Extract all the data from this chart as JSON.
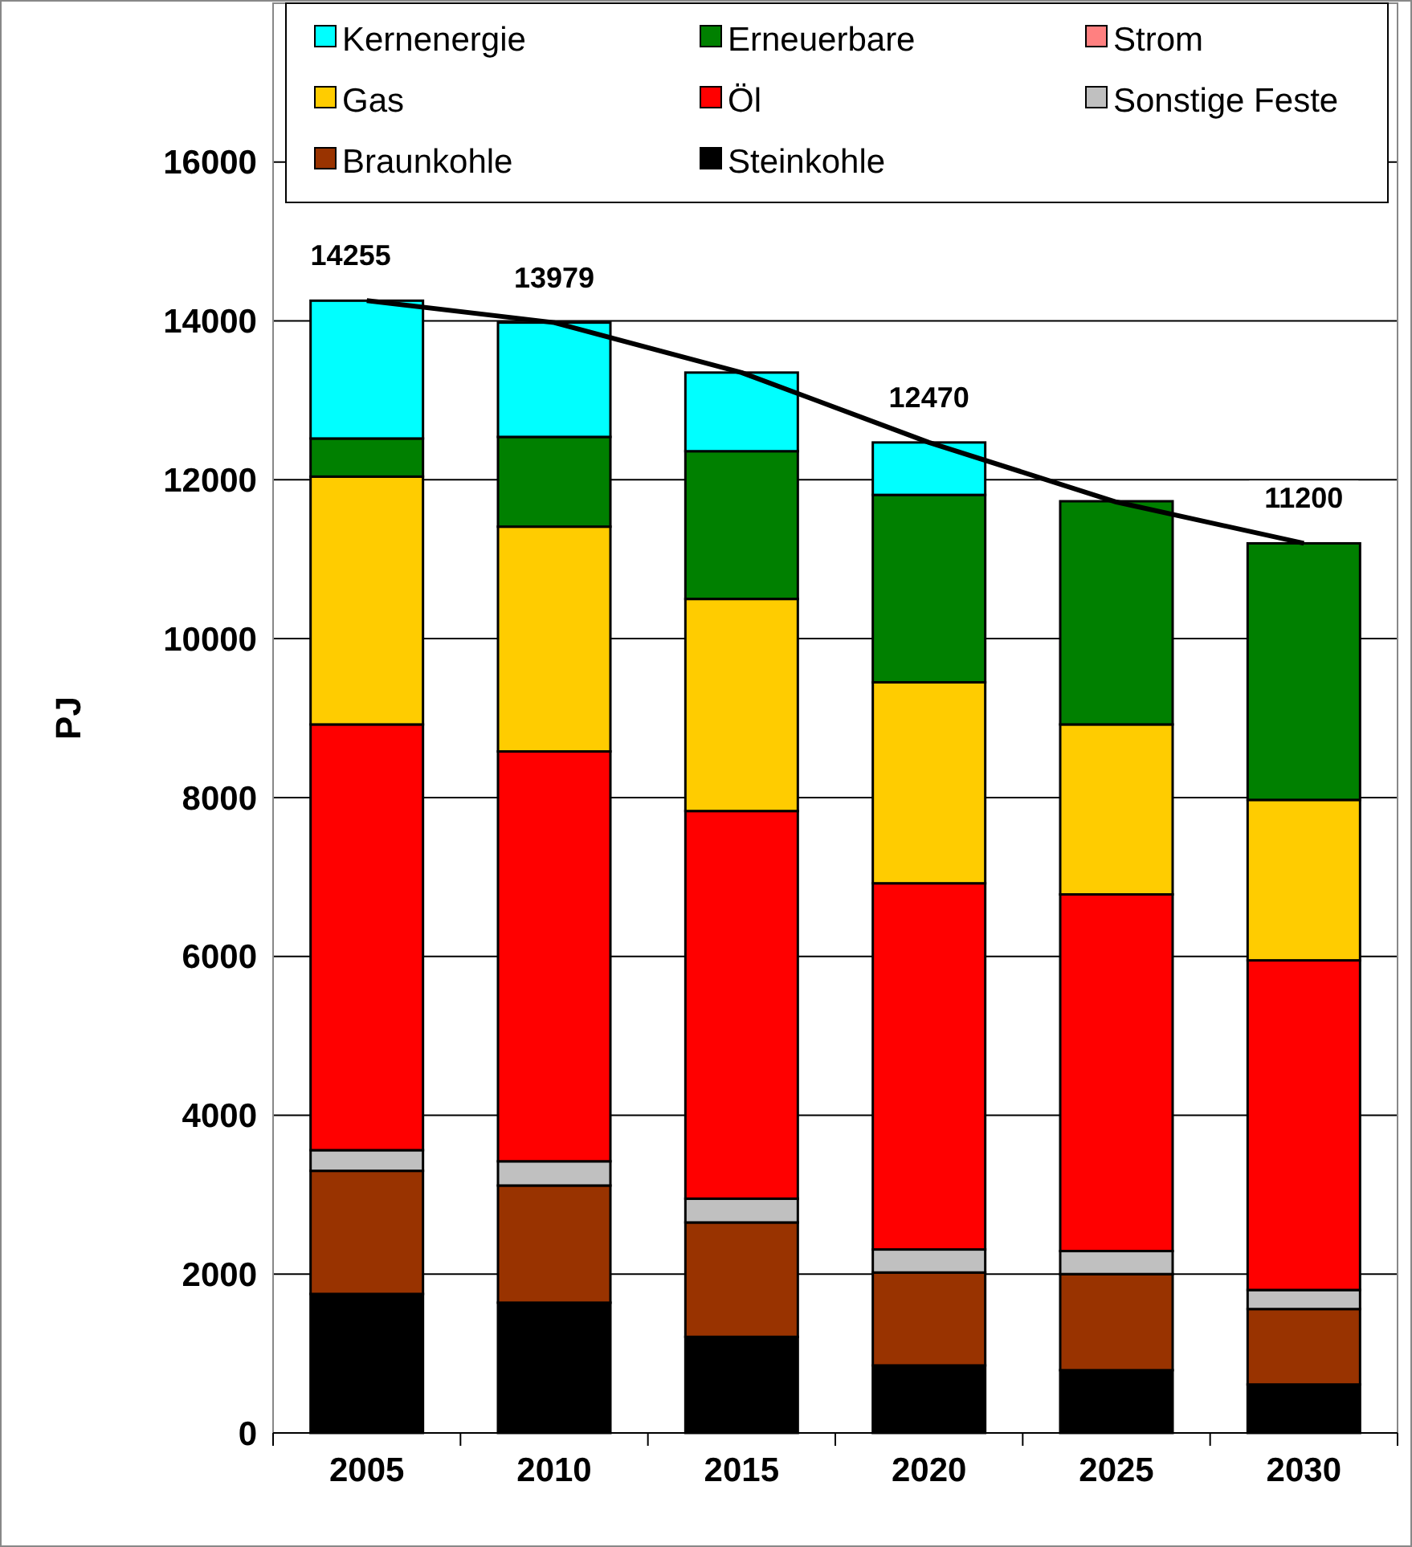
{
  "chart_data": {
    "type": "bar",
    "stacked": true,
    "ylabel": "PJ",
    "categories": [
      "2005",
      "2010",
      "2015",
      "2020",
      "2025",
      "2030"
    ],
    "ylim": [
      0,
      18000
    ],
    "yticks": [
      0,
      2000,
      4000,
      6000,
      8000,
      10000,
      12000,
      14000,
      16000
    ],
    "grid": "y",
    "legend": "top",
    "series": [
      {
        "name": "Steinkohle",
        "color": "#000000",
        "values": [
          1750,
          1640,
          1210,
          850,
          790,
          610
        ]
      },
      {
        "name": "Braunkohle",
        "color": "#993300",
        "values": [
          1550,
          1475,
          1440,
          1170,
          1210,
          950
        ]
      },
      {
        "name": "Sonstige Feste",
        "color": "#c0c0c0",
        "values": [
          260,
          305,
          300,
          290,
          290,
          240
        ]
      },
      {
        "name": "Öl",
        "color": "#ff0000",
        "values": [
          5360,
          5160,
          4880,
          4610,
          4490,
          4150
        ]
      },
      {
        "name": "Gas",
        "color": "#ffcc00",
        "values": [
          3120,
          2830,
          2670,
          2530,
          2140,
          2020
        ]
      },
      {
        "name": "Strom",
        "color": "#ff8080",
        "values": [
          0,
          0,
          0,
          0,
          0,
          0
        ]
      },
      {
        "name": "Erneuerbare",
        "color": "#008000",
        "values": [
          480,
          1130,
          1860,
          2360,
          2810,
          3230
        ]
      },
      {
        "name": "Kernenergie",
        "color": "#00ffff",
        "values": [
          1735,
          1439,
          990,
          660,
          0,
          0
        ]
      },
      {
        "type": "line",
        "color": "#000000",
        "marker": "none",
        "values": [
          14255,
          13979,
          13350,
          12470,
          11720,
          11200
        ],
        "value_labels": [
          "14255",
          "13979",
          null,
          "12470",
          null,
          "11200"
        ]
      }
    ]
  }
}
